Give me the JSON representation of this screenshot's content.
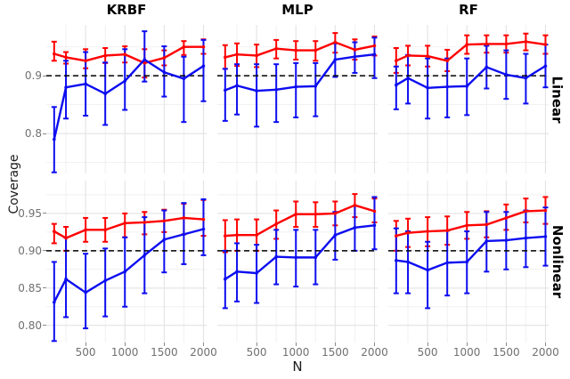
{
  "figure": {
    "kind": "faceted line chart with error bars",
    "background": "#ffffff"
  },
  "axes": {
    "x_title": "N",
    "y_title": "Coverage",
    "x_domain": [
      0,
      2040
    ],
    "x_major_ticks": [
      500,
      1000,
      1500,
      2000
    ],
    "x_minor_ticks": [
      250,
      750,
      1250,
      1750
    ],
    "reference_line": {
      "value": 0.9,
      "style": "dashed",
      "color": "#000000"
    },
    "rows": [
      {
        "label": "Linear",
        "ylim": [
          0.731,
          0.988
        ],
        "major_y": [
          0.8,
          0.9
        ],
        "minor_y": [
          0.75,
          0.85,
          0.95
        ],
        "tick_labels": [
          {
            "value": 0.9,
            "label": "0.9"
          },
          {
            "value": 0.8,
            "label": "0.8"
          }
        ]
      },
      {
        "label": "Nonlinear",
        "ylim": [
          0.777,
          0.994
        ],
        "major_y": [
          0.8,
          0.85,
          0.9,
          0.95
        ],
        "minor_y": [
          0.825,
          0.875,
          0.925,
          0.975
        ],
        "tick_labels": [
          {
            "value": 0.95,
            "label": "0.95"
          },
          {
            "value": 0.9,
            "label": "0.90"
          },
          {
            "value": 0.85,
            "label": "0.85"
          },
          {
            "value": 0.8,
            "label": "0.80"
          }
        ]
      }
    ]
  },
  "facets": {
    "columns": [
      "KRBF",
      "MLP",
      "RF"
    ],
    "rows": [
      "Linear",
      "Nonlinear"
    ]
  },
  "colors": {
    "red_series": "#ff0000",
    "blue_series": "#0d0df0",
    "grid_major": "#e3e3e3",
    "grid_minor": "#f1f1f1",
    "tick_text": "#707070",
    "axis_title_text": "#1a1a1a",
    "facet_text": "#000000",
    "reference": "#000000"
  },
  "chart_data": [
    {
      "type": "line",
      "facet_row": "Linear",
      "facet_col": "KRBF",
      "x": [
        100,
        250,
        500,
        750,
        1000,
        1250,
        1500,
        1750,
        2000
      ],
      "series": [
        {
          "name": "red",
          "color": "#ff0000",
          "values": [
            0.938,
            0.932,
            0.926,
            0.935,
            0.937,
            0.922,
            0.931,
            0.95,
            0.95
          ],
          "err_low": [
            0.926,
            0.921,
            0.913,
            0.922,
            0.923,
            0.897,
            0.918,
            0.936,
            0.938
          ],
          "err_high": [
            0.959,
            0.941,
            0.946,
            0.948,
            0.951,
            0.946,
            0.944,
            0.96,
            0.963
          ]
        },
        {
          "name": "blue",
          "color": "#0d0df0",
          "values": [
            0.79,
            0.88,
            0.886,
            0.869,
            0.891,
            0.928,
            0.906,
            0.895,
            0.917
          ],
          "err_low": [
            0.733,
            0.826,
            0.831,
            0.815,
            0.841,
            0.89,
            0.864,
            0.82,
            0.856
          ],
          "err_high": [
            0.846,
            0.926,
            0.941,
            0.923,
            0.946,
            0.977,
            0.951,
            0.933,
            0.962
          ]
        }
      ]
    },
    {
      "type": "line",
      "facet_row": "Linear",
      "facet_col": "MLP",
      "x": [
        100,
        250,
        500,
        750,
        1000,
        1250,
        1500,
        1750,
        2000
      ],
      "series": [
        {
          "name": "red",
          "color": "#ff0000",
          "values": [
            0.932,
            0.937,
            0.935,
            0.947,
            0.944,
            0.944,
            0.958,
            0.945,
            0.952
          ],
          "err_low": [
            0.912,
            0.917,
            0.915,
            0.93,
            0.928,
            0.926,
            0.94,
            0.928,
            0.935
          ],
          "err_high": [
            0.953,
            0.956,
            0.954,
            0.962,
            0.96,
            0.96,
            0.974,
            0.963,
            0.968
          ]
        },
        {
          "name": "blue",
          "color": "#0d0df0",
          "values": [
            0.875,
            0.883,
            0.874,
            0.876,
            0.881,
            0.882,
            0.928,
            0.933,
            0.937
          ],
          "err_low": [
            0.822,
            0.833,
            0.812,
            0.82,
            0.828,
            0.83,
            0.898,
            0.905,
            0.896
          ],
          "err_high": [
            0.912,
            0.92,
            0.92,
            0.92,
            0.922,
            0.922,
            0.956,
            0.958,
            0.966
          ]
        }
      ]
    },
    {
      "type": "line",
      "facet_row": "Linear",
      "facet_col": "RF",
      "x": [
        100,
        250,
        500,
        750,
        1000,
        1250,
        1500,
        1750,
        2000
      ],
      "series": [
        {
          "name": "red",
          "color": "#ff0000",
          "values": [
            0.926,
            0.935,
            0.934,
            0.926,
            0.954,
            0.955,
            0.955,
            0.959,
            0.954
          ],
          "err_low": [
            0.905,
            0.918,
            0.916,
            0.908,
            0.938,
            0.94,
            0.94,
            0.944,
            0.938
          ],
          "err_high": [
            0.948,
            0.952,
            0.952,
            0.945,
            0.97,
            0.97,
            0.97,
            0.973,
            0.97
          ]
        },
        {
          "name": "blue",
          "color": "#0d0df0",
          "values": [
            0.884,
            0.896,
            0.879,
            0.881,
            0.882,
            0.915,
            0.902,
            0.896,
            0.917
          ],
          "err_low": [
            0.842,
            0.852,
            0.826,
            0.828,
            0.832,
            0.878,
            0.86,
            0.852,
            0.88
          ],
          "err_high": [
            0.916,
            0.936,
            0.93,
            0.93,
            0.93,
            0.952,
            0.944,
            0.938,
            0.954
          ]
        }
      ]
    },
    {
      "type": "line",
      "facet_row": "Nonlinear",
      "facet_col": "KRBF",
      "x": [
        100,
        250,
        500,
        750,
        1000,
        1250,
        1500,
        1750,
        2000
      ],
      "series": [
        {
          "name": "red",
          "color": "#ff0000",
          "values": [
            0.926,
            0.917,
            0.928,
            0.928,
            0.937,
            0.938,
            0.94,
            0.944,
            0.942
          ],
          "err_low": [
            0.91,
            0.9,
            0.912,
            0.912,
            0.918,
            0.922,
            0.925,
            0.922,
            0.92
          ],
          "err_high": [
            0.936,
            0.932,
            0.944,
            0.944,
            0.95,
            0.952,
            0.955,
            0.963,
            0.968
          ]
        },
        {
          "name": "blue",
          "color": "#0d0df0",
          "values": [
            0.831,
            0.862,
            0.844,
            0.86,
            0.872,
            0.894,
            0.915,
            0.922,
            0.929
          ],
          "err_low": [
            0.779,
            0.811,
            0.796,
            0.812,
            0.825,
            0.843,
            0.871,
            0.882,
            0.894
          ],
          "err_high": [
            0.885,
            0.918,
            0.896,
            0.903,
            0.918,
            0.945,
            0.954,
            0.964,
            0.969
          ]
        }
      ]
    },
    {
      "type": "line",
      "facet_row": "Nonlinear",
      "facet_col": "MLP",
      "x": [
        100,
        250,
        500,
        750,
        1000,
        1250,
        1500,
        1750,
        2000
      ],
      "series": [
        {
          "name": "red",
          "color": "#ff0000",
          "values": [
            0.92,
            0.921,
            0.921,
            0.936,
            0.949,
            0.949,
            0.95,
            0.961,
            0.953
          ],
          "err_low": [
            0.898,
            0.9,
            0.9,
            0.916,
            0.932,
            0.932,
            0.934,
            0.945,
            0.938
          ],
          "err_high": [
            0.941,
            0.942,
            0.942,
            0.954,
            0.966,
            0.965,
            0.966,
            0.976,
            0.97
          ]
        },
        {
          "name": "blue",
          "color": "#0d0df0",
          "values": [
            0.862,
            0.872,
            0.87,
            0.892,
            0.891,
            0.891,
            0.921,
            0.931,
            0.934
          ],
          "err_low": [
            0.823,
            0.832,
            0.83,
            0.855,
            0.852,
            0.855,
            0.888,
            0.9,
            0.902
          ],
          "err_high": [
            0.9,
            0.91,
            0.908,
            0.928,
            0.928,
            0.928,
            0.952,
            0.96,
            0.972
          ]
        }
      ]
    },
    {
      "type": "line",
      "facet_row": "Nonlinear",
      "facet_col": "RF",
      "x": [
        100,
        250,
        500,
        750,
        1000,
        1250,
        1500,
        1750,
        2000
      ],
      "series": [
        {
          "name": "red",
          "color": "#ff0000",
          "values": [
            0.92,
            0.924,
            0.926,
            0.927,
            0.934,
            0.935,
            0.944,
            0.953,
            0.954
          ],
          "err_low": [
            0.9,
            0.905,
            0.906,
            0.908,
            0.916,
            0.918,
            0.928,
            0.938,
            0.936
          ],
          "err_high": [
            0.94,
            0.943,
            0.945,
            0.946,
            0.952,
            0.953,
            0.962,
            0.97,
            0.972
          ]
        },
        {
          "name": "blue",
          "color": "#0d0df0",
          "values": [
            0.887,
            0.885,
            0.874,
            0.884,
            0.885,
            0.913,
            0.914,
            0.917,
            0.919
          ],
          "err_low": [
            0.843,
            0.843,
            0.823,
            0.84,
            0.843,
            0.872,
            0.875,
            0.878,
            0.88
          ],
          "err_high": [
            0.93,
            0.926,
            0.912,
            0.927,
            0.926,
            0.952,
            0.952,
            0.954,
            0.958
          ]
        }
      ]
    }
  ]
}
